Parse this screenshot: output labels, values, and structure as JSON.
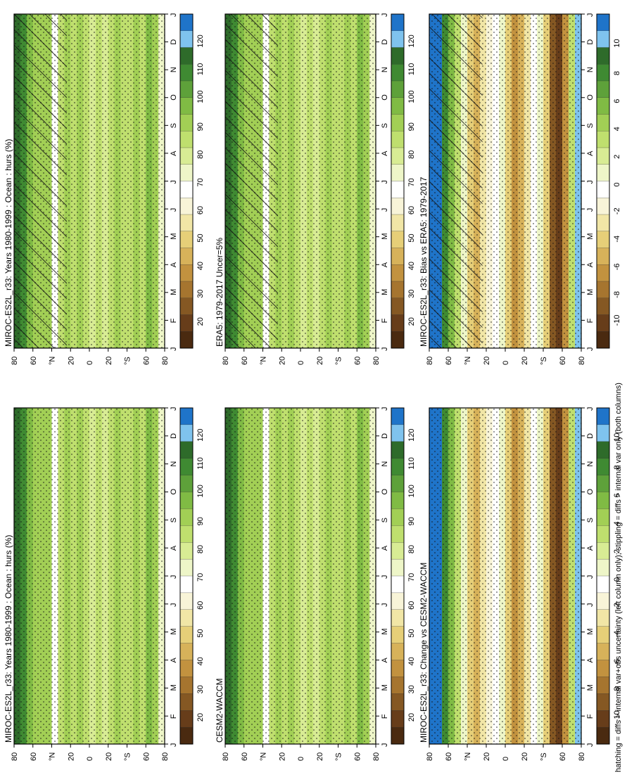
{
  "footnote": "hatching = diffs > internal var+obs uncertainty (left column only); stippling = diffs > internal var only (both columns)",
  "palette_abs": [
    "#1f74c9",
    "#7fc3ee",
    "#2e6b2a",
    "#3f8a32",
    "#5ea13a",
    "#80bb44",
    "#a2cf55",
    "#bfdf6e",
    "#d8ec94",
    "#eef6c8",
    "#ffffff",
    "#f8f4d8",
    "#f1e6a6",
    "#e6cf78",
    "#d7b25a",
    "#c2923f",
    "#a6752f",
    "#855823",
    "#673d1a",
    "#4a2a10"
  ],
  "palette_diff": [
    "#1f74c9",
    "#7fc3ee",
    "#2e6b2a",
    "#3f8a32",
    "#5ea13a",
    "#80bb44",
    "#a2cf55",
    "#bfdf6e",
    "#d8ec94",
    "#eef6c8",
    "#ffffff",
    "#f8f4d8",
    "#f1e6a6",
    "#e6cf78",
    "#d7b25a",
    "#c2923f",
    "#a6752f",
    "#855823",
    "#673d1a",
    "#4a2a10"
  ],
  "chart_data": [
    {
      "type": "heatmap",
      "title": "MIROC-ES2L_r33: Years 1980-1999 : Ocean : hurs (%)",
      "x": [
        "J",
        "F",
        "M",
        "A",
        "M",
        "J",
        "J",
        "A",
        "S",
        "O",
        "N",
        "D",
        "J"
      ],
      "y_ticks": [
        "80",
        "60",
        "°N",
        "20",
        "0",
        "20",
        "°S",
        "60",
        "80"
      ],
      "colorbar_labels": [
        "120",
        "110",
        "100",
        "90",
        "80",
        "70",
        "60",
        "50",
        "40",
        "30",
        "20"
      ],
      "stippling": true,
      "hatching": true
    },
    {
      "type": "heatmap",
      "title": "MIROC-ES2L_r33: Years 1980-1999 : Ocean : hurs (%)",
      "x": [
        "J",
        "F",
        "M",
        "A",
        "M",
        "J",
        "J",
        "A",
        "S",
        "O",
        "N",
        "D",
        "J"
      ],
      "y_ticks": [
        "80",
        "60",
        "°N",
        "20",
        "0",
        "20",
        "°S",
        "60",
        "80"
      ],
      "colorbar_labels": [
        "120",
        "110",
        "100",
        "90",
        "80",
        "70",
        "60",
        "50",
        "40",
        "30",
        "20"
      ],
      "stippling": true,
      "hatching": false
    },
    {
      "type": "heatmap",
      "title": "ERA5: 1979-2017 Uncer=5%",
      "x": [
        "J",
        "F",
        "M",
        "A",
        "M",
        "J",
        "J",
        "A",
        "S",
        "O",
        "N",
        "D",
        "J"
      ],
      "y_ticks": [
        "80",
        "60",
        "°N",
        "20",
        "0",
        "20",
        "°S",
        "60",
        "80"
      ],
      "colorbar_labels": [
        "120",
        "110",
        "100",
        "90",
        "80",
        "70",
        "60",
        "50",
        "40",
        "30",
        "20"
      ],
      "stippling": true,
      "hatching": true
    },
    {
      "type": "heatmap",
      "title": "CESM2-WACCM",
      "x": [
        "J",
        "F",
        "M",
        "A",
        "M",
        "J",
        "J",
        "A",
        "S",
        "O",
        "N",
        "D",
        "J"
      ],
      "y_ticks": [
        "80",
        "60",
        "°N",
        "20",
        "0",
        "20",
        "°S",
        "60",
        "80"
      ],
      "colorbar_labels": [
        "120",
        "110",
        "100",
        "90",
        "80",
        "70",
        "60",
        "50",
        "40",
        "30",
        "20"
      ],
      "stippling": true,
      "hatching": false
    },
    {
      "type": "heatmap",
      "title": "MIROC-ES2L_r33: Bias vs ERA5: 1979-2017",
      "x": [
        "J",
        "F",
        "M",
        "A",
        "M",
        "J",
        "J",
        "A",
        "S",
        "O",
        "N",
        "D",
        "J"
      ],
      "y_ticks": [
        "80",
        "60",
        "°N",
        "20",
        "0",
        "20",
        "°S",
        "60",
        "80"
      ],
      "colorbar_labels": [
        "10",
        "8",
        "6",
        "4",
        "2",
        "0",
        "-2",
        "-4",
        "-6",
        "-8",
        "-10"
      ],
      "stippling": true,
      "hatching": true
    },
    {
      "type": "heatmap",
      "title": "MIROC-ES2L_r33: Change vs CESM2-WACCM",
      "x": [
        "J",
        "F",
        "M",
        "A",
        "M",
        "J",
        "J",
        "A",
        "S",
        "O",
        "N",
        "D",
        "J"
      ],
      "y_ticks": [
        "80",
        "60",
        "°N",
        "20",
        "0",
        "20",
        "°S",
        "60",
        "80"
      ],
      "colorbar_labels": [
        "10",
        "8",
        "6",
        "4",
        "2",
        "0",
        "-2",
        "-4",
        "-6",
        "-8",
        "-10"
      ],
      "stippling": true,
      "hatching": false
    }
  ]
}
